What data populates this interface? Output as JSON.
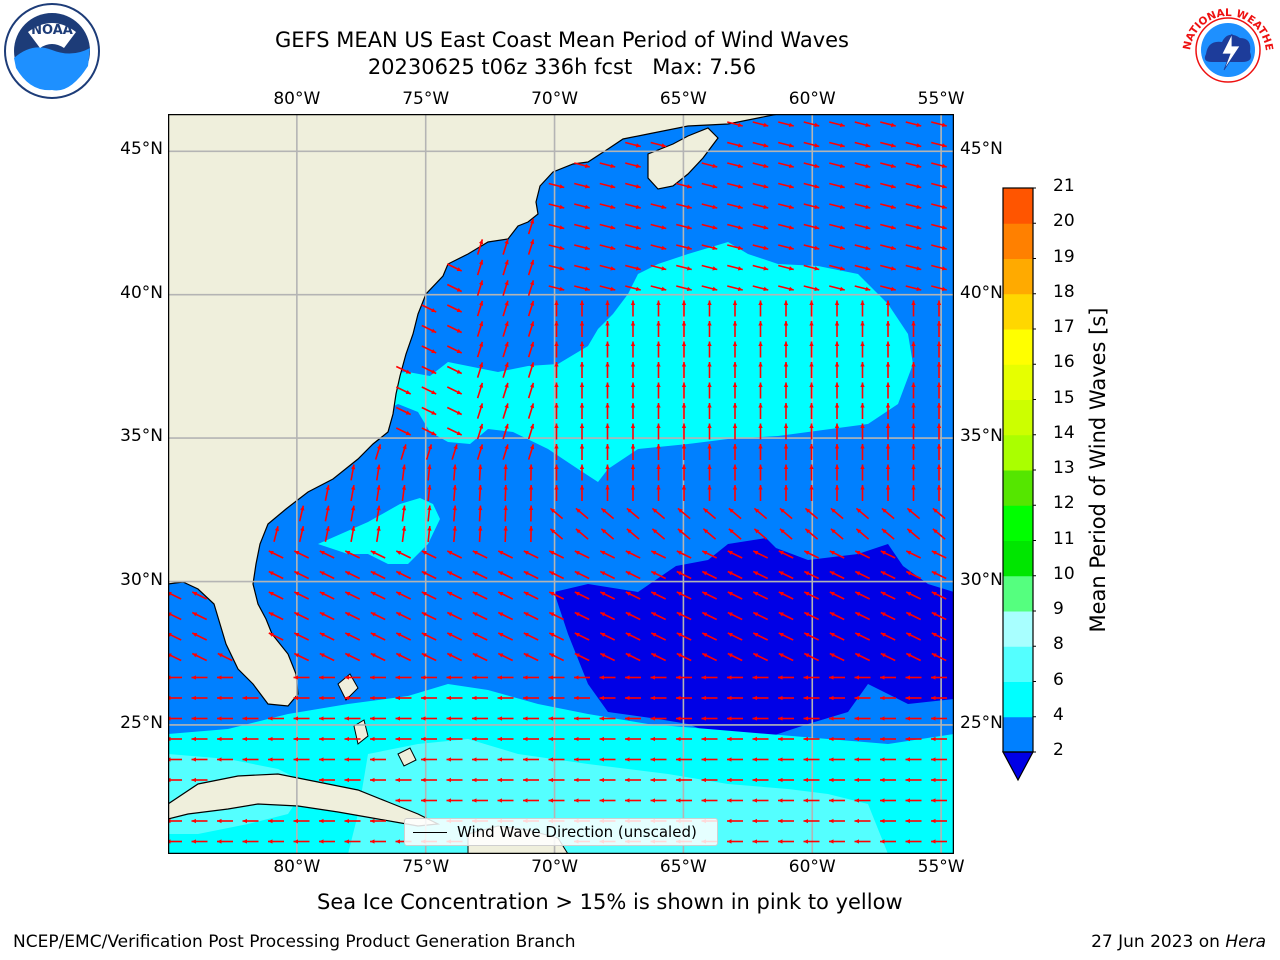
{
  "title_line1": "GEFS MEAN US East Coast Mean Period of Wind Waves",
  "title_line2": "20230625 t06z 336h fcst   Max: 7.56",
  "subtitle": "Sea Ice Concentration > 15% is shown in pink to yellow",
  "footer_left": "NCEP/EMC/Verification Post Processing Product Generation Branch",
  "footer_date": "27 Jun 2023 on ",
  "footer_machine": "Hera",
  "legend_label": "Wind Wave Direction (unscaled)",
  "logos": {
    "noaa_text": "NOAA",
    "nws_text": "NATIONAL WEATHER SERVICE"
  },
  "map": {
    "lon_range": [
      -85,
      -54.5
    ],
    "lat_range": [
      20.5,
      46.3
    ],
    "lon_ticks": [
      {
        "value": -80,
        "label": "80°W"
      },
      {
        "value": -75,
        "label": "75°W"
      },
      {
        "value": -70,
        "label": "70°W"
      },
      {
        "value": -65,
        "label": "65°W"
      },
      {
        "value": -60,
        "label": "60°W"
      },
      {
        "value": -55,
        "label": "55°W"
      }
    ],
    "lat_ticks": [
      {
        "value": 45,
        "label": "45°N"
      },
      {
        "value": 40,
        "label": "40°N"
      },
      {
        "value": 35,
        "label": "35°N"
      },
      {
        "value": 30,
        "label": "30°N"
      },
      {
        "value": 25,
        "label": "25°N"
      }
    ],
    "grid": true,
    "colors": {
      "land": "#efefdc",
      "ocean_base": "#0080ff",
      "low_period": "#0000e6",
      "mid_period": "#00ffff",
      "high_period": "#54ffff",
      "arrow": "#ff0000",
      "grid": "#b4b4b4",
      "coast": "#000000"
    }
  },
  "colorbar": {
    "title": "Mean Period of Wind Waves [s]",
    "ticks": [
      2,
      4,
      6,
      8,
      9,
      10,
      11,
      12,
      13,
      14,
      15,
      16,
      17,
      18,
      19,
      20,
      21
    ],
    "colors": [
      "#0080ff",
      "#00ffff",
      "#54ffff",
      "#a8ffff",
      "#55ff7f",
      "#00e600",
      "#00ff00",
      "#55e600",
      "#aaff00",
      "#ccff00",
      "#e6ff00",
      "#ffff00",
      "#ffd700",
      "#ffaa00",
      "#ff8000",
      "#ff5500",
      "#ff0000"
    ],
    "under_color": "#0000e6"
  }
}
